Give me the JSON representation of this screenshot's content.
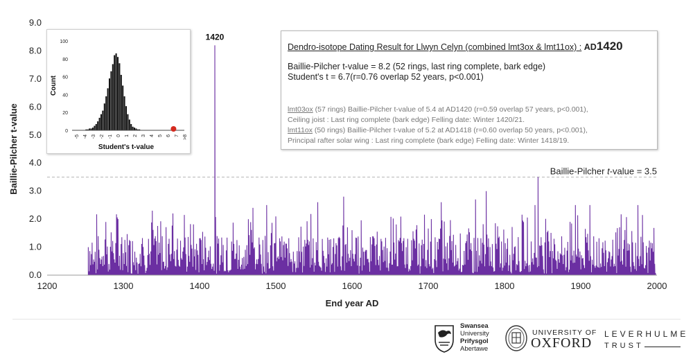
{
  "colors": {
    "series": "#6b2fa2",
    "threshold": "#b5b5b5",
    "inset_bars": "#111111",
    "inset_highlight": "#d42a1f"
  },
  "chart_data": [
    {
      "type": "bar",
      "xlabel": "End year AD",
      "ylabel": "Baillie-Pilcher t-value",
      "xlim": [
        1200,
        2000
      ],
      "ylim": [
        0,
        9
      ],
      "x_ticks": [
        "1200",
        "1300",
        "1400",
        "1500",
        "1600",
        "1700",
        "1800",
        "1900",
        "2000"
      ],
      "y_ticks": [
        "0.0",
        "1.0",
        "2.0",
        "3.0",
        "4.0",
        "5.0",
        "6.0",
        "7.0",
        "8.0",
        "9.0"
      ],
      "grid": false,
      "threshold": {
        "value": 3.5,
        "label_prefix": "Baillie-Pilcher ",
        "label_t": "t",
        "label_suffix": "-value = 3.5"
      },
      "peak": {
        "x": 1420,
        "y": 8.2,
        "label": "1420"
      },
      "series_start": 1254,
      "notable": [
        {
          "x": 1254,
          "y": 1.0
        },
        {
          "x": 1277,
          "y": 1.9
        },
        {
          "x": 1293,
          "y": 2.0
        },
        {
          "x": 1338,
          "y": 2.3
        },
        {
          "x": 1365,
          "y": 2.2
        },
        {
          "x": 1420,
          "y": 8.2
        },
        {
          "x": 1470,
          "y": 2.4
        },
        {
          "x": 1488,
          "y": 2.5
        },
        {
          "x": 1555,
          "y": 2.6
        },
        {
          "x": 1589,
          "y": 2.8
        },
        {
          "x": 1717,
          "y": 2.6
        },
        {
          "x": 1762,
          "y": 2.7
        },
        {
          "x": 1776,
          "y": 3.0
        },
        {
          "x": 1840,
          "y": 2.5
        },
        {
          "x": 1844,
          "y": 3.5
        },
        {
          "x": 1893,
          "y": 2.5
        },
        {
          "x": 1912,
          "y": 2.5
        },
        {
          "x": 1975,
          "y": 2.5
        }
      ]
    },
    {
      "type": "bar",
      "xlabel": "Student's t-value",
      "ylabel": "Count",
      "ylim": [
        0,
        100
      ],
      "y_ticks": [
        "0",
        "20",
        "40",
        "60",
        "80",
        "100"
      ],
      "x_ticks": [
        "-5",
        "-4",
        "-3",
        "-2",
        "-1",
        "0",
        "1",
        "2",
        "3",
        "4",
        "5",
        "6",
        "7",
        ">8"
      ],
      "bin_width": 0.2,
      "x": [
        -3.8,
        -3.6,
        -3.4,
        -3.2,
        -3.0,
        -2.8,
        -2.6,
        -2.4,
        -2.2,
        -2.0,
        -1.8,
        -1.6,
        -1.4,
        -1.2,
        -1.0,
        -0.8,
        -0.6,
        -0.4,
        -0.2,
        0.0,
        0.2,
        0.4,
        0.6,
        0.8,
        1.0,
        1.2,
        1.4,
        1.6,
        1.8,
        2.0,
        2.2,
        2.4,
        2.6
      ],
      "values": [
        1,
        1,
        2,
        2,
        3,
        5,
        7,
        10,
        14,
        18,
        22,
        30,
        38,
        47,
        58,
        66,
        74,
        84,
        86,
        82,
        75,
        62,
        50,
        38,
        27,
        18,
        12,
        7,
        4,
        3,
        2,
        1,
        1
      ],
      "highlight": {
        "x": 6.7,
        "label": "6.7"
      }
    }
  ],
  "info": {
    "title_prefix": "Dendro-isotope Dating Result for Llwyn Celyn (combined  lmt3ox & lmt11ox) :",
    "title_ad": "AD",
    "title_year": "1420",
    "bp_line": "Baillie-Pilcher t-value = 8.2 (52 rings, last ring complete, bark edge)",
    "st_line": "Student's t = 6.7(r=0.76 overlap 52 years, p<0.001)",
    "s1_id": "lmt03ox",
    "s1_text": " (57 rings)  Baillie-Pilcher t-value of 5.4 at AD1420 (r=0.59 overlap 57 years, p<0.001),",
    "s1_line2": "Ceiling joist : Last ring complete (bark edge) Felling date:  Winter 1420/21.",
    "s2_id": "lmt11ox",
    "s2_text": " (50 rings)  Baillie-Pilcher t-value of 5.2 at AD1418 (r=0.60 overlap 50 years, p<0.001),",
    "s2_line2": "Principal  rafter solar wing : Last ring complete (bark edge) Felling date: Winter 1418/19."
  },
  "logos": {
    "swansea": [
      "Swansea",
      "University",
      "Prifysgol",
      "Abertawe"
    ],
    "oxford_top": "UNIVERSITY OF",
    "oxford_name": "OXFORD",
    "leverhulme_top": "LEVERHULME",
    "leverhulme_bottom": "TRUST"
  }
}
